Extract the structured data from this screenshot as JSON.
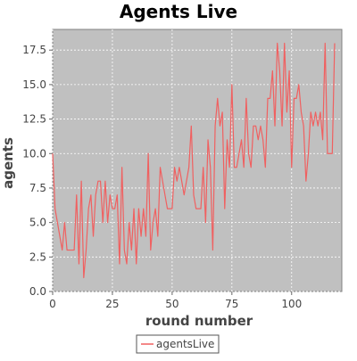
{
  "chart_data": {
    "type": "line",
    "title": "Agents Live",
    "xlabel": "round number",
    "ylabel": "agents",
    "xlim": [
      0,
      121
    ],
    "ylim": [
      0,
      19
    ],
    "x_ticks": [
      0,
      25,
      50,
      75,
      100
    ],
    "y_ticks": [
      0.0,
      2.5,
      5.0,
      7.5,
      10.0,
      12.5,
      15.0,
      17.5
    ],
    "x_tick_labels": [
      "0",
      "25",
      "50",
      "75",
      "100"
    ],
    "y_tick_labels": [
      "0.0",
      "2.5",
      "5.0",
      "7.5",
      "10.0",
      "12.5",
      "15.0",
      "17.5"
    ],
    "grid": true,
    "legend_position": "bottom",
    "plot_background": "#c0c0c0",
    "series": [
      {
        "name": "agentsLive",
        "color": "#f06060",
        "x": [
          0,
          1,
          2,
          3,
          4,
          5,
          6,
          7,
          8,
          9,
          10,
          11,
          12,
          13,
          14,
          15,
          16,
          17,
          18,
          19,
          20,
          21,
          22,
          23,
          24,
          25,
          26,
          27,
          28,
          29,
          30,
          31,
          32,
          33,
          34,
          35,
          36,
          37,
          38,
          39,
          40,
          41,
          42,
          43,
          44,
          45,
          46,
          47,
          48,
          49,
          50,
          51,
          52,
          53,
          54,
          55,
          56,
          57,
          58,
          59,
          60,
          61,
          62,
          63,
          64,
          65,
          66,
          67,
          68,
          69,
          70,
          71,
          72,
          73,
          74,
          75,
          76,
          77,
          78,
          79,
          80,
          81,
          82,
          83,
          84,
          85,
          86,
          87,
          88,
          89,
          90,
          91,
          92,
          93,
          94,
          95,
          96,
          97,
          98,
          99,
          100,
          101,
          102,
          103,
          104,
          105,
          106,
          107,
          108,
          109,
          110,
          111,
          112,
          113,
          114,
          115,
          116,
          117,
          118
        ],
        "y": [
          10,
          6,
          5,
          4,
          3,
          5,
          3,
          3,
          3,
          3,
          7,
          2,
          8,
          1,
          3,
          6,
          7,
          4,
          7,
          8,
          8,
          5,
          8,
          5,
          7,
          6,
          6,
          7,
          2,
          9,
          3,
          2,
          5,
          3,
          6,
          2,
          6,
          4,
          6,
          4,
          10,
          3,
          5,
          6,
          4,
          9,
          8,
          7,
          6,
          6,
          6,
          9,
          8,
          9,
          8,
          7,
          8,
          9,
          12,
          7,
          6,
          6,
          6,
          9,
          5,
          11,
          9,
          3,
          12,
          14,
          12,
          13,
          6,
          11,
          9,
          15,
          9,
          9,
          10,
          11,
          9,
          14,
          10,
          9,
          12,
          12,
          11,
          12,
          11,
          9,
          14,
          14,
          16,
          12,
          18,
          16,
          12,
          18,
          13,
          16,
          9,
          14,
          14,
          15,
          13,
          12,
          8,
          10,
          13,
          12,
          13,
          12,
          13,
          11,
          18,
          10,
          10,
          10,
          18
        ]
      }
    ]
  }
}
